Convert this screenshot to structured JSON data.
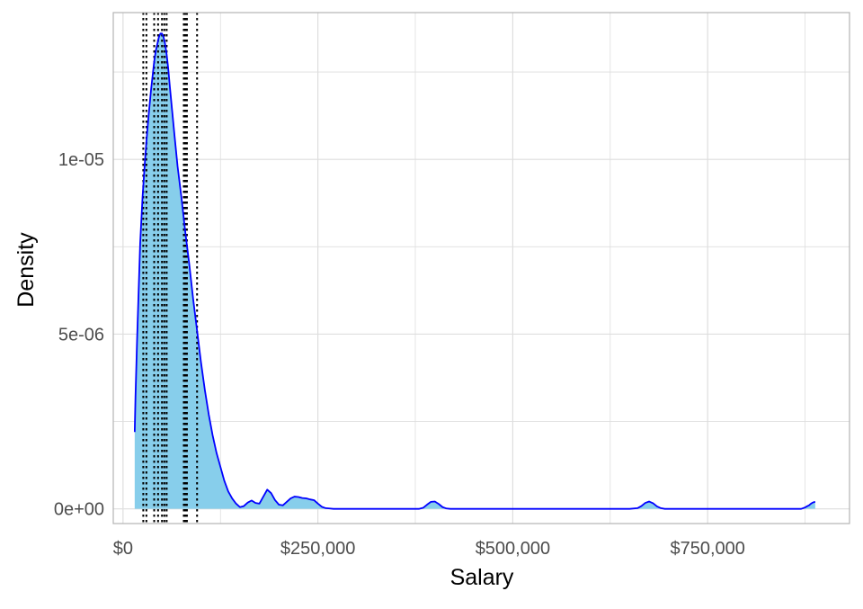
{
  "chart_data": {
    "type": "area",
    "title": "",
    "xlabel": "Salary",
    "ylabel": "Density",
    "xlim": [
      -12500,
      932000
    ],
    "ylim": [
      -4.2e-07,
      1.42e-05
    ],
    "grid": true,
    "x_ticks": [
      {
        "value": 0,
        "label": "$0"
      },
      {
        "value": 250000,
        "label": "$250,000"
      },
      {
        "value": 500000,
        "label": "$500,000"
      },
      {
        "value": 750000,
        "label": "$750,000"
      }
    ],
    "y_ticks": [
      {
        "value": 0,
        "label": "0e+00"
      },
      {
        "value": 5e-06,
        "label": "5e-06"
      },
      {
        "value": 1e-05,
        "label": "1e-05"
      }
    ],
    "x_minor_gridlines": [
      125000,
      375000,
      625000,
      875000
    ],
    "y_minor_gridlines": [
      2.5e-06,
      7.5e-06,
      1.25e-05
    ],
    "density_curve": {
      "x": [
        15000,
        16000,
        18000,
        20000,
        22000,
        25000,
        28000,
        30000,
        33000,
        36000,
        38000,
        40000,
        42000,
        44000,
        46000,
        48000,
        50000,
        52000,
        54000,
        56000,
        58000,
        60000,
        63000,
        66000,
        70000,
        75000,
        80000,
        85000,
        90000,
        95000,
        100000,
        105000,
        110000,
        115000,
        120000,
        125000,
        130000,
        135000,
        140000,
        145000,
        150000,
        155000,
        160000,
        165000,
        170000,
        175000,
        180000,
        185000,
        190000,
        195000,
        200000,
        205000,
        210000,
        215000,
        220000,
        225000,
        230000,
        235000,
        240000,
        245000,
        250000,
        255000,
        260000,
        265000,
        270000,
        280000,
        300000,
        350000,
        380000,
        385000,
        390000,
        395000,
        400000,
        405000,
        410000,
        415000,
        420000,
        440000,
        500000,
        600000,
        650000,
        660000,
        665000,
        670000,
        675000,
        680000,
        685000,
        690000,
        695000,
        700000,
        750000,
        800000,
        850000,
        870000,
        875000,
        878000,
        880000,
        882000,
        884000,
        886000,
        888000
      ],
      "y": [
        2.2e-06,
        3.2e-06,
        4.8e-06,
        6.2e-06,
        7.6e-06,
        8.9e-06,
        9.9e-06,
        1.05e-05,
        1.13e-05,
        1.2e-05,
        1.24e-05,
        1.28e-05,
        1.31e-05,
        1.33e-05,
        1.35e-05,
        1.36e-05,
        1.36e-05,
        1.35e-05,
        1.33e-05,
        1.3e-05,
        1.26e-05,
        1.21e-05,
        1.14e-05,
        1.07e-05,
        9.8e-06,
        8.9e-06,
        7.9e-06,
        7e-06,
        6e-06,
        5.1e-06,
        4.2e-06,
        3.4e-06,
        2.7e-06,
        2.1e-06,
        1.6e-06,
        1.2e-06,
        8e-07,
        5e-07,
        3e-07,
        1.5e-07,
        5e-08,
        8e-08,
        1.8e-07,
        2.4e-07,
        1.7e-07,
        1.5e-07,
        3.5e-07,
        5.5e-07,
        4.5e-07,
        2.5e-07,
        1.2e-07,
        1e-07,
        2e-07,
        3e-07,
        3.5e-07,
        3.4e-07,
        3.1e-07,
        3e-07,
        2.7e-07,
        2.5e-07,
        1.5e-07,
        6e-08,
        2e-08,
        1e-08,
        0.0,
        0.0,
        0.0,
        0.0,
        0.0,
        3e-08,
        1.2e-07,
        2e-07,
        2.1e-07,
        1.4e-07,
        5e-08,
        1e-08,
        0.0,
        0.0,
        0.0,
        0.0,
        0.0,
        2e-08,
        8e-08,
        1.7e-07,
        2.1e-07,
        1.6e-07,
        7e-08,
        2e-08,
        0.0,
        0.0,
        0.0,
        0.0,
        0.0,
        0.0,
        4e-08,
        8e-08,
        1e-07,
        1.4e-07,
        1.7e-07,
        1.9e-07,
        2e-07
      ]
    },
    "vertical_lines": [
      26000,
      30000,
      40000,
      45000,
      50000,
      53000,
      56000,
      78000,
      80000,
      82000,
      95000
    ],
    "colors": {
      "fill": "#87ceeb",
      "curve": "#0000ff",
      "vline": "#000000",
      "grid": "#dedede",
      "panel_border": "#b3b3b3",
      "tick_label": "#4d4d4d",
      "axis_title": "#000000",
      "background": "#ffffff"
    }
  }
}
